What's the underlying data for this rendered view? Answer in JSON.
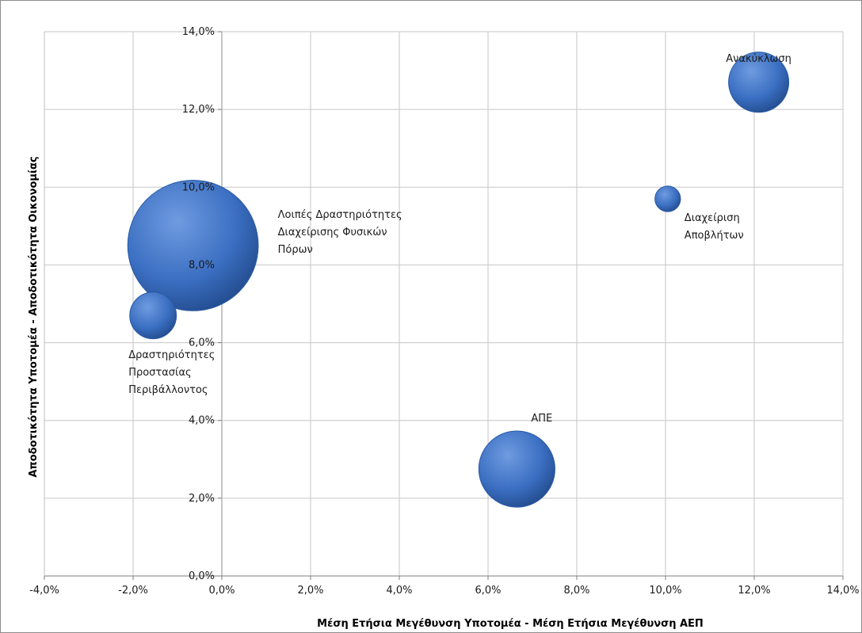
{
  "chart_data": {
    "type": "bubble",
    "title": "",
    "xlabel": "Μέση Ετήσια Μεγέθυνση Υποτομέα - Μέση Ετήσια Μεγέθυνση ΑΕΠ",
    "ylabel": "Αποδοτικότητα Υποτομέα - Αποδοτικότητα Οικονομίας",
    "xlim": [
      -0.04,
      0.14
    ],
    "ylim": [
      0.0,
      0.14
    ],
    "xticks": [
      "-4,0%",
      "-2,0%",
      "0,0%",
      "2,0%",
      "4,0%",
      "6,0%",
      "8,0%",
      "10,0%",
      "12,0%",
      "14,0%"
    ],
    "yticks": [
      "0,0%",
      "2,0%",
      "4,0%",
      "6,0%",
      "8,0%",
      "10,0%",
      "12,0%",
      "14,0%"
    ],
    "grid": true,
    "bubble_color": "#3b6fc2",
    "series": [
      {
        "label": [
          "Ανακύκλωση"
        ],
        "x": 0.121,
        "y": 0.127,
        "size": 1.0
      },
      {
        "label": [
          "Διαχείριση",
          "Αποβλήτων"
        ],
        "x": 0.1005,
        "y": 0.097,
        "size": 0.18
      },
      {
        "label": [
          "Λοιπές Δραστηριότητες",
          "Διαχείρισης Φυσικών",
          "Πόρων"
        ],
        "x": -0.0065,
        "y": 0.085,
        "size": 4.7
      },
      {
        "label": [
          "Δραστηριότητες",
          "Προστασίας",
          "Περιβάλλοντος"
        ],
        "x": -0.0155,
        "y": 0.067,
        "size": 0.6
      },
      {
        "label": [
          "ΑΠΕ"
        ],
        "x": 0.0665,
        "y": 0.0275,
        "size": 1.6
      }
    ]
  }
}
